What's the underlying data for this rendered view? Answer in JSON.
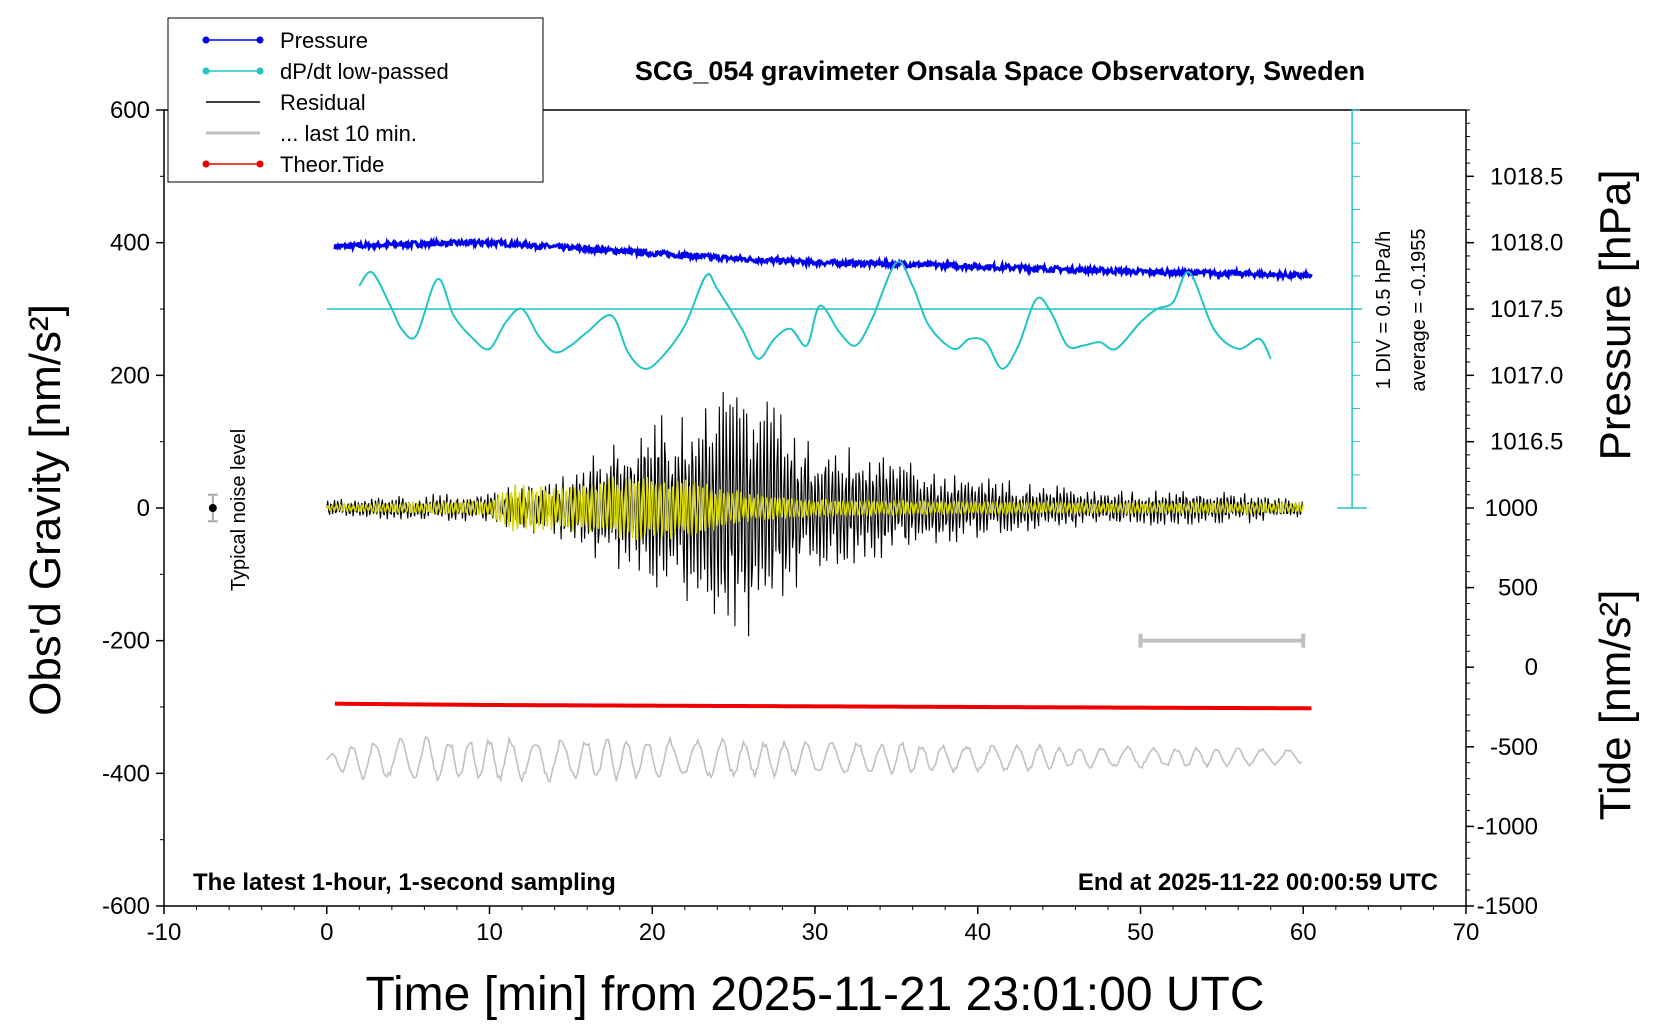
{
  "chart_data": {
    "type": "line",
    "title": "SCG_054 gravimeter Onsala Space Observatory, Sweden",
    "xlabel": "Time [min] from 2025-11-21 23:01:00 UTC",
    "ylabel_left": "Obs'd Gravity [nm/s²]",
    "ylabel_right_top": "Pressure [hPa]",
    "ylabel_right_bottom": "Tide [nm/s²]",
    "xlim": [
      -10,
      70
    ],
    "ylim": [
      -600,
      600
    ],
    "pressure_ylim": [
      1016.0,
      1019.0
    ],
    "tide_ylim": [
      -1500,
      1500
    ],
    "x_ticks": [
      -10,
      0,
      10,
      20,
      30,
      40,
      50,
      60,
      70
    ],
    "y_ticks": [
      600,
      400,
      200,
      0,
      -200,
      -400,
      -600
    ],
    "pressure_ticks": [
      1018.5,
      1018.0,
      1017.5,
      1017.0,
      1016.5
    ],
    "tide_ticks": [
      1000,
      500,
      0,
      -500,
      -1000,
      -1500
    ],
    "note_left": "The latest 1-hour, 1-second sampling",
    "note_right": "End at 2025-11-22 00:00:59 UTC",
    "noise_label": "Typical noise level",
    "noise_point": {
      "x": -7,
      "y": 0,
      "err": 20
    },
    "ten_min_bar": {
      "x0": 50,
      "x1": 60,
      "y": -200
    },
    "dpdt_axis": {
      "zero_hpa": 1017.5,
      "line1": "1 DIV = 0.5 hPa/h",
      "line2": "average = -0.1955"
    },
    "legend": [
      {
        "label": "Pressure",
        "color": "#0000ee",
        "marker": true
      },
      {
        "label": "dP/dt low-passed",
        "color": "#22c4c4",
        "marker": true
      },
      {
        "label": "Residual",
        "color": "#000000",
        "marker": false
      },
      {
        "label": "... last 10 min.",
        "color": "#c0c0c0",
        "marker": false
      },
      {
        "label": "Theor.Tide",
        "color": "#ee0000",
        "marker": true
      }
    ],
    "series": [
      {
        "name": "Pressure",
        "axis": "pressure",
        "color": "#0000ee",
        "x": [
          0.5,
          5,
          10,
          15,
          20,
          25,
          30,
          35,
          40,
          45,
          50,
          55,
          60.5
        ],
        "y": [
          1017.97,
          1017.99,
          1018.0,
          1017.96,
          1017.92,
          1017.88,
          1017.85,
          1017.84,
          1017.82,
          1017.8,
          1017.78,
          1017.77,
          1017.75
        ]
      },
      {
        "name": "dP/dt low-passed",
        "axis": "gravity",
        "color": "#22c4c4",
        "x": [
          2,
          2.8,
          4,
          4.6,
          5.5,
          6.8,
          7.8,
          9,
          10,
          11,
          12,
          13,
          14,
          15,
          16,
          17.5,
          18.5,
          19.5,
          20.5,
          22,
          23.3,
          24,
          25.5,
          26.5,
          27.5,
          28.5,
          29.5,
          30.3,
          31.5,
          32.5,
          33.5,
          35,
          36,
          37,
          38.5,
          39.5,
          40.5,
          41.5,
          42.5,
          43.6,
          44.5,
          45.5,
          46.5,
          47.5,
          48.5,
          50,
          51,
          52,
          53,
          54.5,
          56,
          57.3,
          58
        ],
        "y": [
          335,
          355,
          300,
          270,
          260,
          345,
          290,
          255,
          240,
          280,
          300,
          260,
          235,
          245,
          265,
          290,
          235,
          210,
          225,
          275,
          350,
          330,
          270,
          225,
          255,
          270,
          245,
          305,
          265,
          245,
          285,
          370,
          335,
          275,
          240,
          255,
          250,
          210,
          245,
          315,
          295,
          245,
          245,
          250,
          240,
          280,
          300,
          310,
          355,
          270,
          240,
          255,
          225
        ]
      },
      {
        "name": "Theor.Tide",
        "axis": "gravity",
        "color": "#ee0000",
        "x": [
          0.5,
          5,
          10,
          20,
          30,
          40,
          50,
          60.5
        ],
        "y": [
          -295,
          -296,
          -297,
          -298,
          -299,
          -300,
          -301,
          -302
        ]
      },
      {
        "name": "Residual",
        "axis": "gravity",
        "color": "#000000",
        "x": [
          0,
          10,
          15,
          19,
          22.5,
          24.8,
          26.7,
          30,
          34,
          40,
          50,
          60
        ],
        "y": [
          0,
          0,
          0,
          0,
          0,
          0,
          0,
          0,
          0,
          0,
          0,
          0
        ],
        "envelope_x": [
          0,
          10,
          12,
          15,
          19,
          21.5,
          22.5,
          24.8,
          26.7,
          30,
          34.5,
          38,
          45,
          50,
          55,
          60
        ],
        "envelope_amp": [
          15,
          25,
          40,
          60,
          130,
          150,
          170,
          220,
          190,
          100,
          90,
          55,
          35,
          30,
          28,
          15
        ]
      },
      {
        "name": "Residual (filtered)",
        "axis": "gravity",
        "color": "#d8d800",
        "x": [
          0,
          10,
          11.5,
          14,
          19,
          22.5,
          25.5,
          30,
          40,
          60
        ],
        "y": [
          0,
          0,
          0,
          0,
          0,
          0,
          0,
          0,
          0,
          0
        ],
        "envelope_x": [
          0,
          10,
          11.5,
          14,
          19,
          22.5,
          25.5,
          30,
          40,
          60
        ],
        "envelope_amp": [
          5,
          12,
          40,
          35,
          55,
          45,
          25,
          15,
          10,
          8
        ]
      },
      {
        "name": "... last 10 min.",
        "axis": "gravity",
        "color": "#c0c0c0",
        "x": [
          0,
          60
        ],
        "y": [
          -380,
          -375
        ],
        "envelope_x": [
          0,
          2,
          5,
          17,
          35,
          60
        ],
        "envelope_amp": [
          10,
          30,
          35,
          35,
          25,
          12
        ]
      }
    ]
  }
}
